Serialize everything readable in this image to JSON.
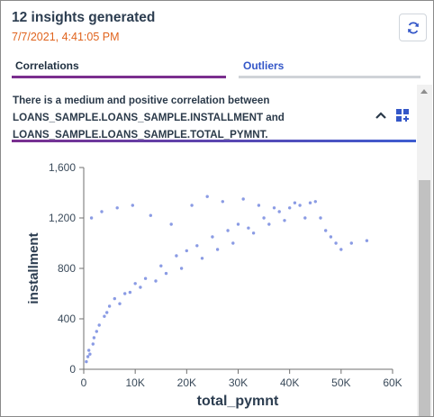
{
  "header": {
    "title": "12 insights generated",
    "timestamp": "7/7/2021, 4:41:05 PM"
  },
  "tabs": [
    {
      "label": "Correlations",
      "active": true
    },
    {
      "label": "Outliers",
      "active": false
    }
  ],
  "insight": {
    "lines": [
      "There is a medium and positive correlation between",
      "LOANS_SAMPLE.LOANS_SAMPLE.INSTALLMENT and",
      "LOANS_SAMPLE.LOANS_SAMPLE.TOTAL_PYMNT."
    ]
  },
  "icons": {
    "refresh": "refresh-icon",
    "collapse": "chevron-up-icon",
    "layout": "grid-plus-icon"
  },
  "colors": {
    "accent_purple": "#7b2f8e",
    "accent_blue": "#3457c8",
    "timestamp_orange": "#e0641e",
    "point_color": "#8a9be4"
  },
  "chart_data": {
    "type": "scatter",
    "xlabel": "total_pymnt",
    "ylabel": "installment",
    "xlim": [
      0,
      60000
    ],
    "ylim": [
      0,
      1600
    ],
    "xticks": [
      0,
      10000,
      20000,
      30000,
      40000,
      50000,
      60000
    ],
    "xtick_labels": [
      "0",
      "10K",
      "20K",
      "30K",
      "40K",
      "50K",
      "60K"
    ],
    "yticks": [
      0,
      400,
      800,
      1200,
      1600
    ],
    "ytick_labels": [
      "0",
      "400",
      "800",
      "1,200",
      "1,600"
    ],
    "grid": false,
    "x": [
      1000,
      2000,
      3000,
      4000,
      5000,
      6000,
      8000,
      10000,
      12000,
      15000,
      18000,
      20000,
      22000,
      25000,
      28000,
      30000,
      32000,
      35000,
      38000,
      40000,
      42000,
      44000,
      46000,
      48000,
      50000,
      52000,
      55000,
      2500,
      4500,
      7000,
      9000,
      11000,
      14000,
      16000,
      19000,
      23000,
      26000,
      29000,
      33000,
      36000,
      39000,
      43000,
      47000,
      1500,
      3500,
      6500,
      9500,
      13000,
      17000,
      21000,
      24000,
      27000,
      31000,
      34000,
      37000,
      41000,
      45000,
      49000,
      500,
      800,
      1200,
      1800
    ],
    "y": [
      150,
      250,
      350,
      420,
      500,
      560,
      600,
      680,
      720,
      820,
      900,
      940,
      980,
      1050,
      1100,
      1150,
      1120,
      1200,
      1250,
      1280,
      1300,
      1320,
      1200,
      1050,
      950,
      1000,
      1020,
      300,
      450,
      520,
      610,
      650,
      700,
      760,
      800,
      880,
      950,
      1000,
      1080,
      1150,
      1180,
      1200,
      1100,
      1200,
      1250,
      1280,
      1300,
      1220,
      1150,
      1300,
      1370,
      1330,
      1350,
      1300,
      1280,
      1320,
      1330,
      1000,
      60,
      100,
      120,
      200
    ]
  }
}
